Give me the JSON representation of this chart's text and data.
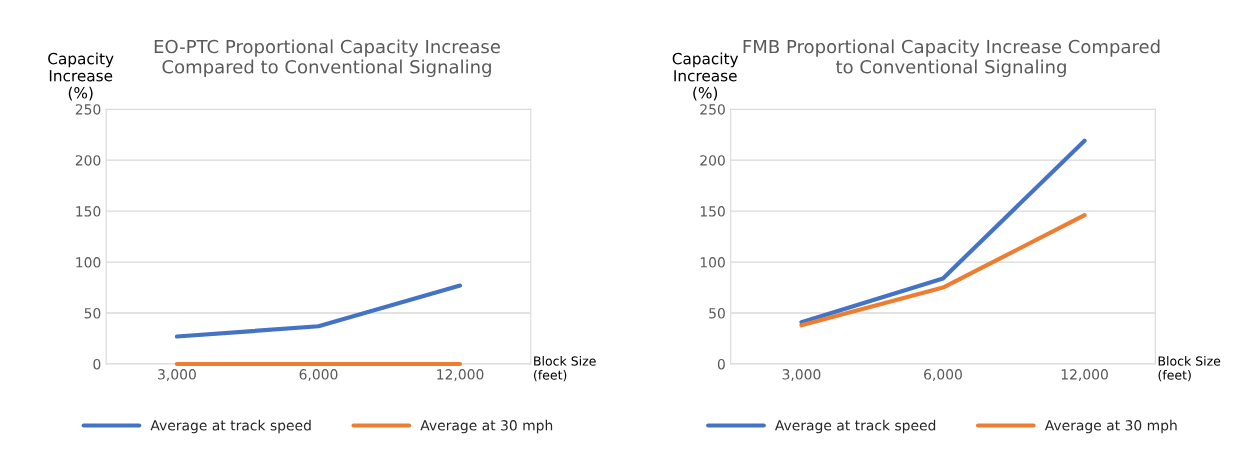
{
  "chart_data": [
    {
      "type": "line",
      "title": "EO-PTC Proportional Capacity Increase\nCompared to Conventional Signaling",
      "ylabel": "Capacity\nIncrease\n(%)",
      "xlabel": "Block Size\n(feet)",
      "categories": [
        "3,000",
        "6,000",
        "12,000"
      ],
      "series": [
        {
          "name": "Average at track speed",
          "color": "#4472c4",
          "values": [
            27,
            37,
            77
          ]
        },
        {
          "name": "Average at 30 mph",
          "color": "#ed7d31",
          "values": [
            0,
            0,
            0
          ]
        }
      ],
      "ylim": [
        0,
        250
      ],
      "yticks": [
        0,
        50,
        100,
        150,
        200,
        250
      ],
      "grid": "y",
      "legend": "bottom",
      "marker": "none",
      "line_style": "solid"
    },
    {
      "type": "line",
      "title": "FMB Proportional Capacity Increase Compared\nto Conventional Signaling",
      "ylabel": "Capacity\nIncrease\n(%)",
      "xlabel": "Block Size\n(feet)",
      "categories": [
        "3,000",
        "6,000",
        "12,000"
      ],
      "series": [
        {
          "name": "Average at track speed",
          "color": "#4472c4",
          "values": [
            41,
            84,
            219
          ]
        },
        {
          "name": "Average at 30 mph",
          "color": "#ed7d31",
          "values": [
            38,
            75,
            146
          ]
        }
      ],
      "ylim": [
        0,
        250
      ],
      "yticks": [
        0,
        50,
        100,
        150,
        200,
        250
      ],
      "grid": "y",
      "legend": "bottom",
      "marker": "none",
      "line_style": "solid"
    }
  ]
}
